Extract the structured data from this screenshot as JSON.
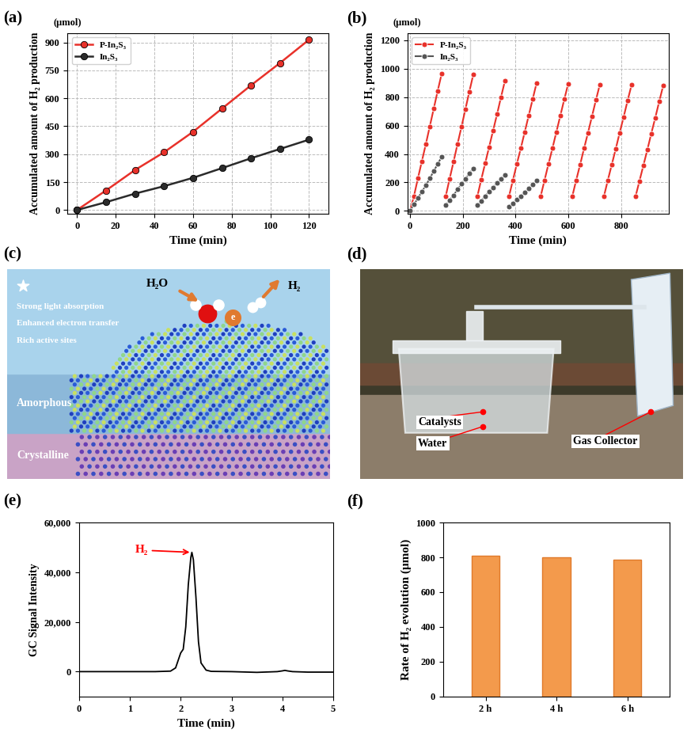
{
  "chart_data": [
    {
      "panel": "(a)",
      "type": "line",
      "unit": "(μmol)",
      "y_label": "Accumulated amount of H₂ production",
      "x_label": "Time (min)",
      "x": [
        0,
        15,
        30,
        45,
        60,
        75,
        90,
        105,
        120
      ],
      "series": [
        {
          "name": "P-In₂S₃",
          "color": "#e8312a",
          "marker": "o",
          "values": [
            0,
            105,
            215,
            310,
            420,
            545,
            670,
            790,
            915
          ]
        },
        {
          "name": "In₂S₃",
          "color": "#2b2b2b",
          "marker": "o",
          "values": [
            0,
            42,
            88,
            128,
            173,
            225,
            278,
            328,
            378
          ]
        }
      ],
      "xlim": [
        -5,
        130
      ],
      "xticks": [
        0,
        20,
        40,
        60,
        80,
        100,
        120
      ],
      "ylim": [
        -20,
        950
      ],
      "yticks": [
        0,
        150,
        300,
        450,
        600,
        750,
        900
      ],
      "grid": true,
      "legend": "upper left"
    },
    {
      "panel": "(b)",
      "type": "line",
      "unit": "(μmol)",
      "y_label": "Accumulated amount of H₂ production",
      "x_label": "Time (min)",
      "series": [
        {
          "name": "P-In₂S₃",
          "color": "#e8312a",
          "marker": "o",
          "cycles": [
            {
              "x": [
                0,
                15,
                30,
                45,
                60,
                75,
                90,
                105,
                120
              ],
              "values": [
                0,
                105,
                230,
                350,
                470,
                595,
                720,
                845,
                965
              ]
            },
            {
              "x": [
                135,
                150,
                165,
                180,
                195,
                210,
                225,
                240
              ],
              "values": [
                100,
                225,
                345,
                470,
                590,
                715,
                840,
                960
              ]
            },
            {
              "x": [
                255,
                270,
                285,
                300,
                315,
                330,
                345,
                360
              ],
              "values": [
                100,
                220,
                335,
                450,
                565,
                680,
                800,
                915
              ]
            },
            {
              "x": [
                375,
                390,
                405,
                420,
                435,
                450,
                465,
                480
              ],
              "values": [
                100,
                215,
                330,
                440,
                555,
                670,
                785,
                900
              ]
            },
            {
              "x": [
                495,
                510,
                525,
                540,
                555,
                570,
                585,
                600
              ],
              "values": [
                100,
                215,
                330,
                440,
                555,
                670,
                785,
                895
              ]
            },
            {
              "x": [
                615,
                630,
                645,
                660,
                675,
                690,
                705,
                720
              ],
              "values": [
                100,
                215,
                325,
                440,
                550,
                665,
                780,
                890
              ]
            },
            {
              "x": [
                735,
                750,
                765,
                780,
                795,
                810,
                825,
                840
              ],
              "values": [
                100,
                215,
                325,
                435,
                550,
                660,
                775,
                885
              ]
            },
            {
              "x": [
                855,
                870,
                885,
                900,
                915,
                930,
                945,
                960
              ],
              "values": [
                100,
                210,
                320,
                430,
                545,
                655,
                770,
                880
              ]
            }
          ]
        },
        {
          "name": "In₂S₃",
          "color": "#555555",
          "marker": "o",
          "cycles": [
            {
              "x": [
                0,
                15,
                30,
                45,
                60,
                75,
                90,
                105,
                120
              ],
              "values": [
                0,
                45,
                90,
                135,
                180,
                228,
                280,
                330,
                380
              ]
            },
            {
              "x": [
                135,
                150,
                165,
                180,
                195,
                210,
                225,
                240
              ],
              "values": [
                40,
                75,
                110,
                150,
                190,
                225,
                262,
                300
              ]
            },
            {
              "x": [
                255,
                270,
                285,
                300,
                315,
                330,
                345,
                360
              ],
              "values": [
                40,
                70,
                105,
                135,
                165,
                195,
                225,
                255
              ]
            },
            {
              "x": [
                375,
                390,
                405,
                420,
                435,
                450,
                465,
                480
              ],
              "values": [
                30,
                55,
                80,
                105,
                130,
                160,
                185,
                215
              ]
            }
          ]
        }
      ],
      "xlim": [
        -10,
        980
      ],
      "xticks": [
        0,
        200,
        400,
        600,
        800
      ],
      "ylim": [
        -20,
        1250
      ],
      "yticks": [
        0,
        200,
        400,
        600,
        800,
        1000,
        1200
      ],
      "grid": true,
      "legend": "upper left"
    },
    {
      "panel": "(e)",
      "type": "line",
      "y_label": "GC Signal Intensity",
      "x_label": "Time (min)",
      "annotation": "H₂",
      "color": "#000000",
      "x": [
        0,
        0.5,
        1,
        1.5,
        1.8,
        1.9,
        2.0,
        2.05,
        2.1,
        2.15,
        2.2,
        2.22,
        2.25,
        2.3,
        2.35,
        2.4,
        2.5,
        2.6,
        3,
        3.5,
        3.9,
        4.0,
        4.05,
        4.1,
        4.2,
        4.5,
        5
      ],
      "values": [
        0,
        0,
        0,
        0,
        200,
        1500,
        7500,
        9000,
        18000,
        35000,
        46000,
        48000,
        45000,
        30000,
        12000,
        3500,
        600,
        100,
        0,
        -300,
        0,
        300,
        500,
        300,
        0,
        -200,
        -200
      ],
      "xlim": [
        0,
        5
      ],
      "xticks": [
        0,
        1,
        2,
        3,
        4,
        5
      ],
      "ylim": [
        -10000,
        60000
      ],
      "yticks": [
        {
          "value": 0,
          "label": "0"
        },
        {
          "value": 20000,
          "label": "20,000"
        },
        {
          "value": 40000,
          "label": "40,000"
        },
        {
          "value": 60000,
          "label": "60,000"
        }
      ],
      "grid": false
    },
    {
      "panel": "(f)",
      "type": "bar",
      "y_label": "Rate of H₂ evolution (μmol)",
      "categories": [
        "2 h",
        "4 h",
        "6 h"
      ],
      "values": [
        810,
        800,
        785
      ],
      "color": "#f39a4c",
      "ylim": [
        0,
        1000
      ],
      "yticks": [
        0,
        200,
        400,
        600,
        800,
        1000
      ],
      "grid": false
    }
  ],
  "illustration": {
    "panel": "(c)",
    "features": [
      "Strong light absorption",
      "Enhanced electron transfer",
      "Rich active sites"
    ],
    "reactant": "H₂O",
    "product": "H₂",
    "electron": "e",
    "layers": [
      "Amorphous",
      "Crystalline"
    ]
  },
  "photo": {
    "panel": "(d)",
    "labels": [
      "Catalysts",
      "Water",
      "Gas Collector"
    ]
  }
}
